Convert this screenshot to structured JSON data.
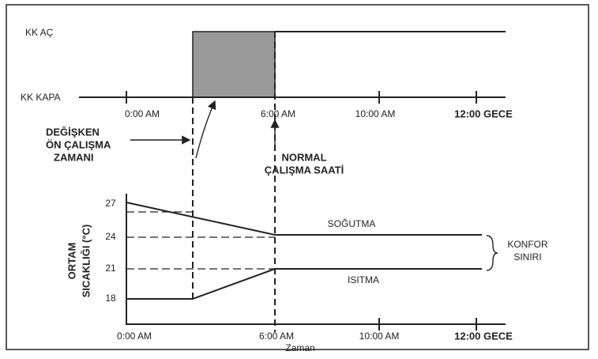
{
  "top": {
    "on_label": "KK AÇ",
    "off_label": "KK KAPA",
    "times": [
      "0:00 AM",
      "6:00 AM",
      "10:00 AM",
      "12:00 GECE"
    ]
  },
  "notes": {
    "variable": [
      "DEĞİŞKEN",
      "ÖN ÇALIŞMA",
      "ZAMANI"
    ],
    "normal": [
      "NORMAL",
      "ÇALIŞMA SAATİ"
    ]
  },
  "bottom": {
    "y_title": [
      "ORTAM",
      "SICAKLIĞI (°C)"
    ],
    "yticks": [
      "27",
      "24",
      "21",
      "18"
    ],
    "cooling": "SOĞUTMA",
    "heating": "ISITMA",
    "comfort": [
      "KONFOR",
      "SINIRI"
    ],
    "times": [
      "0:00 AM",
      "6:00 AM",
      "10:00 AM",
      "12:00 GECE"
    ],
    "x_title": "Zaman"
  }
}
